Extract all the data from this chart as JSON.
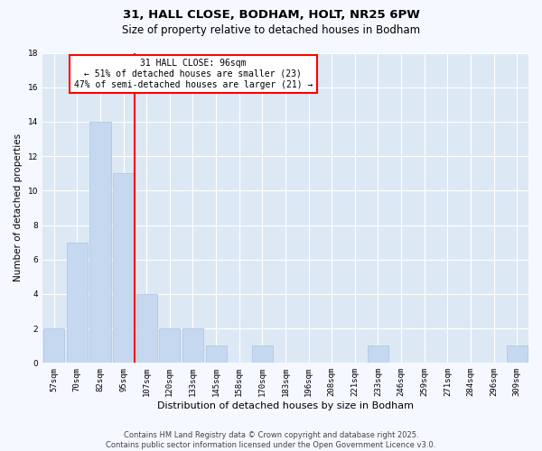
{
  "title_line1": "31, HALL CLOSE, BODHAM, HOLT, NR25 6PW",
  "title_line2": "Size of property relative to detached houses in Bodham",
  "xlabel": "Distribution of detached houses by size in Bodham",
  "ylabel": "Number of detached properties",
  "categories": [
    "57sqm",
    "70sqm",
    "82sqm",
    "95sqm",
    "107sqm",
    "120sqm",
    "133sqm",
    "145sqm",
    "158sqm",
    "170sqm",
    "183sqm",
    "196sqm",
    "208sqm",
    "221sqm",
    "233sqm",
    "246sqm",
    "259sqm",
    "271sqm",
    "284sqm",
    "296sqm",
    "309sqm"
  ],
  "values": [
    2,
    7,
    14,
    11,
    4,
    2,
    2,
    1,
    0,
    1,
    0,
    0,
    0,
    0,
    1,
    0,
    0,
    0,
    0,
    0,
    1
  ],
  "bar_color": "#c5d8f0",
  "bar_edge_color": "#a8c4e0",
  "vline_x_idx": 3.5,
  "vline_color": "red",
  "annotation_title": "31 HALL CLOSE: 96sqm",
  "annotation_line1": "← 51% of detached houses are smaller (23)",
  "annotation_line2": "47% of semi-detached houses are larger (21) →",
  "annotation_box_color": "red",
  "annotation_bg": "white",
  "ylim": [
    0,
    18
  ],
  "yticks": [
    0,
    2,
    4,
    6,
    8,
    10,
    12,
    14,
    16,
    18
  ],
  "background_color": "#f5f8ff",
  "plot_bg_color": "#dde8f5",
  "grid_color": "white",
  "footer_line1": "Contains HM Land Registry data © Crown copyright and database right 2025.",
  "footer_line2": "Contains public sector information licensed under the Open Government Licence v3.0.",
  "title_fontsize": 9.5,
  "subtitle_fontsize": 8.5,
  "xlabel_fontsize": 8,
  "ylabel_fontsize": 7.5,
  "tick_fontsize": 6.5,
  "annotation_fontsize": 7,
  "footer_fontsize": 6
}
